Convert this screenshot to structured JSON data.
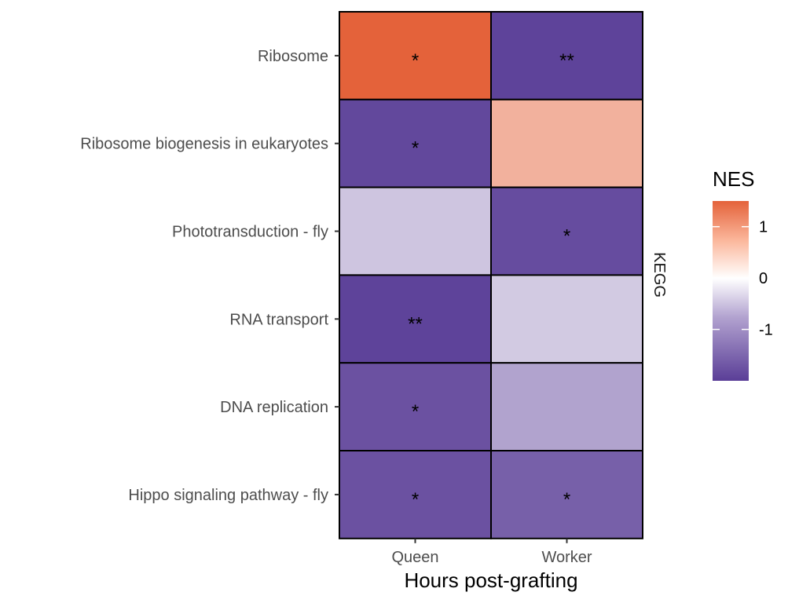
{
  "chart_data": {
    "type": "heatmap",
    "title": "",
    "xlabel": "Hours post-grafting",
    "ylabel": "",
    "facet_label": "KEGG",
    "columns": [
      "Queen",
      "Worker"
    ],
    "rows": [
      "Ribosome",
      "Ribosome biogenesis in eukaryotes",
      "Phototransduction - fly",
      "RNA transport",
      "DNA replication",
      "Hippo signaling pathway - fly"
    ],
    "values": [
      [
        1.5,
        -1.95
      ],
      [
        -1.9,
        0.75
      ],
      [
        -0.6,
        -1.85
      ],
      [
        -1.95,
        -0.55
      ],
      [
        -1.8,
        -0.95
      ],
      [
        -1.8,
        -1.65
      ]
    ],
    "significance": [
      [
        "*",
        "**"
      ],
      [
        "*",
        ""
      ],
      [
        "",
        "*"
      ],
      [
        "**",
        ""
      ],
      [
        "*",
        ""
      ],
      [
        "*",
        "*"
      ]
    ],
    "legend": {
      "title": "NES",
      "ticks": [
        1,
        0,
        -1
      ],
      "range": [
        -2,
        1.5
      ],
      "colors": {
        "low": "#5a3e97",
        "mid": "#ffffff",
        "high": "#e4623a"
      }
    }
  }
}
